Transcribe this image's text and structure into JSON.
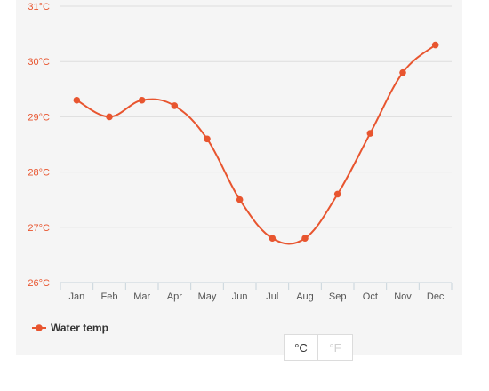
{
  "chart_data": {
    "type": "line",
    "categories": [
      "Jan",
      "Feb",
      "Mar",
      "Apr",
      "May",
      "Jun",
      "Jul",
      "Aug",
      "Sep",
      "Oct",
      "Nov",
      "Dec"
    ],
    "series": [
      {
        "name": "Water temp",
        "values": [
          29.3,
          29.0,
          29.3,
          29.2,
          28.6,
          27.5,
          26.8,
          26.8,
          27.6,
          28.7,
          29.8,
          30.3
        ]
      }
    ],
    "ylim": [
      26,
      31
    ],
    "y_ticks": [
      "26°C",
      "27°C",
      "28°C",
      "29°C",
      "30°C",
      "31°C"
    ],
    "title": "",
    "xlabel": "",
    "ylabel": "",
    "legend_position": "bottom-left",
    "grid": true,
    "smooth": true
  },
  "colors": {
    "series": "#e8552f",
    "axis_labels": "#e8552f",
    "grid": "#dddddd",
    "background": "#f5f5f5"
  },
  "unit_toggle": {
    "celsius_label": "°C",
    "fahrenheit_label": "°F",
    "selected": "°C"
  }
}
